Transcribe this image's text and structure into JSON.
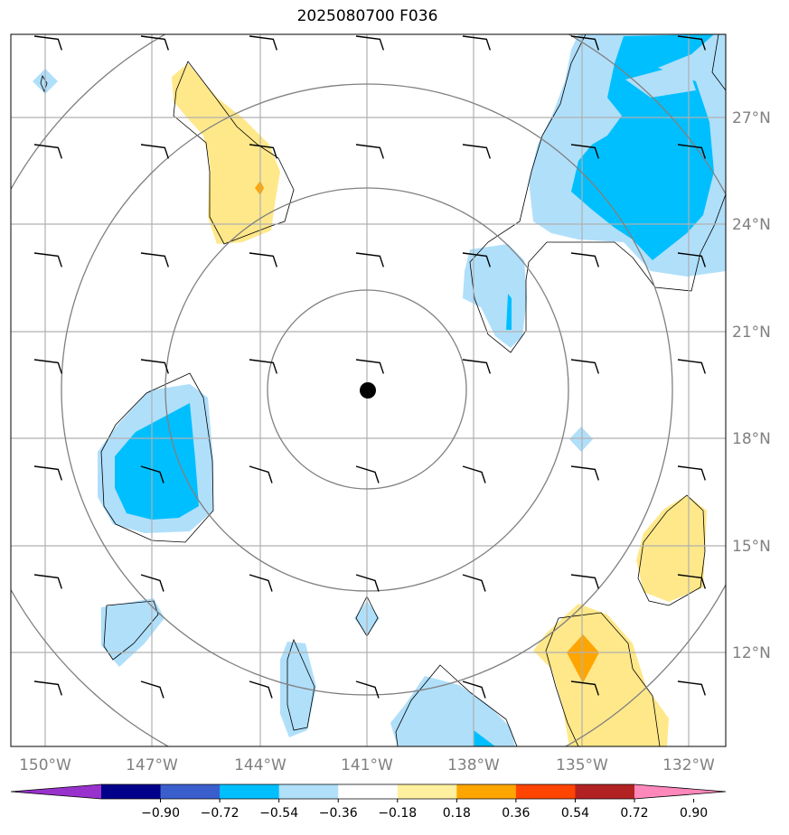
{
  "title": "2025080700 F036",
  "longitude_labels": [
    "150°W",
    "147°W",
    "144°W",
    "141°W",
    "138°W",
    "135°W",
    "132°W"
  ],
  "latitude_labels": [
    "27°N",
    "24°N",
    "21°N",
    "18°N",
    "15°N",
    "12°N"
  ],
  "colorbar": {
    "ticks": [
      "−0.90",
      "−0.72",
      "−0.54",
      "−0.36",
      "−0.18",
      "0.18",
      "0.36",
      "0.54",
      "0.72",
      "0.90"
    ],
    "colors": [
      "#9932cc",
      "#00008b",
      "#3a5fcd",
      "#00bfff",
      "#b0e0fa",
      "#ffffff",
      "#fff0a0",
      "#ffa500",
      "#ff4500",
      "#b22222",
      "#ff88bb"
    ]
  },
  "map_colors": {
    "light_blue": "#b0dffa",
    "blue": "#00bfff",
    "light_yellow": "#ffe88a",
    "orange": "#ffa500"
  },
  "center_marker": "storm-center-dot"
}
